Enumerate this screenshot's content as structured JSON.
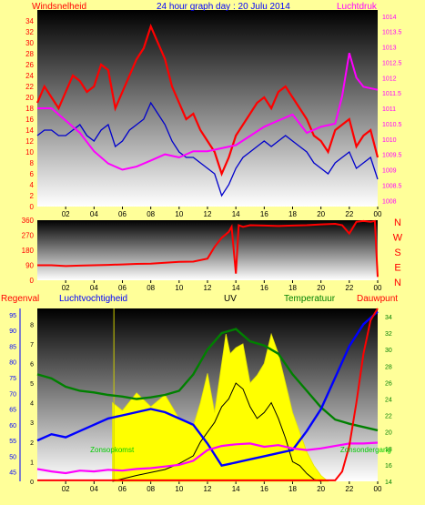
{
  "colors": {
    "background": "#ffff99",
    "wind": "#ff0000",
    "gust": "#0000cc",
    "pressure": "#ff00ff",
    "direction": "#ff0000",
    "temperature": "#008000",
    "humidity": "#0000ff",
    "dewpoint": "#ff0000",
    "rain": "#ff0000",
    "uv": "#ffff00",
    "solar": "#000000",
    "sunrise_label": "#00cc00",
    "sunset_label": "#00cc00"
  },
  "top_panel": {
    "left_title": "Windsnelheid",
    "center_title": "24 hour graph day : 20 Julu 2014",
    "right_title": "Luchtdruk"
  },
  "direction_panel": {
    "compass_labels": [
      "N",
      "W",
      "S",
      "E",
      "N"
    ]
  },
  "bottom_panel": {
    "rain_title": "Regenval",
    "humidity_title": "Luchtvochtigheid",
    "uv_title": "UV",
    "temperature_title": "Temperatuur",
    "dewpoint_title": "Dauwpunt",
    "sunrise_label": "Zonsopkomst",
    "sunset_label": "Zonsondergang"
  },
  "x_ticks": [
    "02",
    "04",
    "06",
    "08",
    "10",
    "12",
    "14",
    "16",
    "18",
    "20",
    "22",
    "00"
  ],
  "chart_data": [
    {
      "type": "line",
      "name": "wind-pressure",
      "x_hours_ticks": [
        2,
        4,
        6,
        8,
        10,
        12,
        14,
        16,
        18,
        20,
        22,
        24
      ],
      "left_axis": {
        "ticks": [
          0,
          2,
          4,
          6,
          8,
          10,
          12,
          14,
          16,
          18,
          20,
          22,
          24,
          26,
          28,
          30,
          32,
          34
        ],
        "ylim": [
          0,
          36
        ]
      },
      "right_axis": {
        "ticks": [
          "1008",
          "1008.5",
          "1009",
          "1009.5",
          "1010",
          "1010.5",
          "1011",
          "1011.5",
          "1012",
          "1012.5",
          "1013",
          "1013.5",
          "1014"
        ],
        "ylim": [
          1007.8,
          1014.2
        ]
      },
      "series": [
        {
          "axis": "left",
          "x": [
            0,
            0.5,
            1,
            1.5,
            2,
            2.5,
            3,
            3.5,
            4,
            4.5,
            5,
            5.5,
            6,
            6.5,
            7,
            7.5,
            8,
            8.5,
            9,
            9.5,
            10,
            10.5,
            11,
            11.5,
            12,
            12.5,
            13,
            13.5,
            14,
            14.5,
            15,
            15.5,
            16,
            16.5,
            17,
            17.5,
            18,
            18.5,
            19,
            19.5,
            20,
            20.5,
            21,
            21.5,
            22,
            22.5,
            23,
            23.5,
            24
          ],
          "values": [
            19,
            22,
            20,
            18,
            21,
            24,
            23,
            21,
            22,
            26,
            25,
            18,
            21,
            24,
            27,
            29,
            33,
            30,
            27,
            22,
            19,
            16,
            17,
            14,
            12,
            10,
            6,
            9,
            13,
            15,
            17,
            19,
            20,
            18,
            21,
            22,
            20,
            18,
            16,
            13,
            12,
            10,
            14,
            15,
            16,
            11,
            13,
            14,
            9
          ]
        },
        {
          "axis": "left",
          "x": [
            0,
            0.5,
            1,
            1.5,
            2,
            2.5,
            3,
            3.5,
            4,
            4.5,
            5,
            5.5,
            6,
            6.5,
            7,
            7.5,
            8,
            8.5,
            9,
            9.5,
            10,
            10.5,
            11,
            11.5,
            12,
            12.5,
            13,
            13.5,
            14,
            14.5,
            15,
            15.5,
            16,
            16.5,
            17,
            17.5,
            18,
            18.5,
            19,
            19.5,
            20,
            20.5,
            21,
            21.5,
            22,
            22.5,
            23,
            23.5,
            24
          ],
          "values": [
            13,
            14,
            14,
            13,
            13,
            14,
            15,
            13,
            12,
            14,
            15,
            11,
            12,
            14,
            15,
            16,
            19,
            17,
            15,
            12,
            10,
            9,
            9,
            8,
            7,
            6,
            2,
            4,
            7,
            9,
            10,
            11,
            12,
            11,
            12,
            13,
            12,
            11,
            10,
            8,
            7,
            6,
            8,
            9,
            10,
            7,
            8,
            9,
            5
          ]
        },
        {
          "axis": "right",
          "x": [
            0,
            1,
            2,
            3,
            4,
            5,
            6,
            7,
            8,
            9,
            10,
            11,
            12,
            13,
            14,
            15,
            16,
            17,
            18,
            19,
            20,
            21,
            21.5,
            22,
            22.5,
            23,
            24
          ],
          "values": [
            1011,
            1011,
            1010.6,
            1010.2,
            1009.6,
            1009.2,
            1009.0,
            1009.1,
            1009.3,
            1009.5,
            1009.4,
            1009.6,
            1009.6,
            1009.7,
            1009.8,
            1010.1,
            1010.4,
            1010.6,
            1010.8,
            1010.2,
            1010.4,
            1010.5,
            1011.4,
            1012.8,
            1012.0,
            1011.7,
            1011.6
          ]
        }
      ]
    },
    {
      "type": "line",
      "name": "wind-direction",
      "left_axis": {
        "ticks": [
          0,
          90,
          180,
          270,
          360
        ],
        "ylim": [
          0,
          360
        ]
      },
      "series": [
        {
          "x": [
            0,
            1,
            2,
            3,
            4,
            5,
            6,
            7,
            8,
            9,
            10,
            11,
            12,
            12.5,
            13,
            13.5,
            13.7,
            14,
            14.2,
            14.5,
            15,
            16,
            17,
            18,
            19,
            20,
            21,
            21.5,
            22,
            22.5,
            23,
            23.5,
            23.8,
            24
          ],
          "values": [
            90,
            90,
            85,
            88,
            90,
            92,
            95,
            98,
            100,
            105,
            110,
            112,
            130,
            200,
            255,
            290,
            320,
            40,
            330,
            320,
            330,
            328,
            325,
            328,
            330,
            335,
            338,
            330,
            280,
            350,
            355,
            350,
            355,
            20
          ]
        }
      ]
    },
    {
      "type": "line",
      "name": "rain-humidity-uv-temperature",
      "left_axis": {
        "ticks": [
          45,
          50,
          55,
          60,
          65,
          70,
          75,
          80,
          85,
          90,
          95
        ],
        "ylim": [
          42,
          97
        ]
      },
      "uv_axis": {
        "ticks": [
          0,
          1,
          2,
          3,
          4,
          5,
          6,
          7,
          8
        ],
        "ylim": [
          0,
          8.8
        ]
      },
      "right_axis": {
        "ticks": [
          14,
          16,
          18,
          20,
          22,
          24,
          26,
          28,
          30,
          32,
          34
        ],
        "ylim": [
          14,
          35
        ]
      },
      "series": [
        {
          "axis": "left",
          "x": [
            0,
            1,
            2,
            3,
            4,
            5,
            6,
            7,
            8,
            9,
            10,
            11,
            12,
            13,
            14,
            15,
            16,
            17,
            18,
            19,
            20,
            21,
            22,
            23,
            24
          ],
          "values": [
            55,
            57,
            56,
            58,
            60,
            62,
            63,
            64,
            65,
            64,
            62,
            60,
            54,
            47,
            48,
            49,
            50,
            51,
            52,
            58,
            65,
            75,
            85,
            92,
            96
          ]
        },
        {
          "axis": "right",
          "x": [
            0,
            1,
            2,
            3,
            4,
            5,
            6,
            7,
            8,
            9,
            10,
            11,
            12,
            13,
            14,
            15,
            16,
            17,
            18,
            19,
            20,
            21,
            22,
            23,
            24
          ],
          "values": [
            27,
            26.5,
            25.5,
            25,
            24.8,
            24.5,
            24.3,
            24,
            24.2,
            24.5,
            25,
            27,
            30,
            32,
            32.5,
            31,
            30.5,
            29.5,
            27,
            25,
            23,
            21.5,
            21,
            20.6,
            20.2
          ]
        },
        {
          "axis": "right",
          "x": [
            0,
            1,
            2,
            3,
            4,
            5,
            6,
            7,
            8,
            9,
            10,
            11,
            12,
            13,
            14,
            15,
            16,
            17,
            18,
            19,
            20,
            21,
            22,
            23,
            24
          ],
          "values": [
            15.5,
            15.2,
            15,
            15.3,
            15.2,
            15.4,
            15.3,
            15.5,
            15.6,
            15.8,
            16,
            16.5,
            17.8,
            18.3,
            18.5,
            18.6,
            18.2,
            18.4,
            18,
            17.8,
            18,
            18.3,
            18.6,
            18.6,
            18.7
          ]
        },
        {
          "axis": "uv",
          "x": [
            5.3,
            6,
            7,
            8,
            9,
            10,
            11,
            11.5,
            12,
            12.5,
            13,
            13.3,
            13.6,
            14,
            14.5,
            15,
            15.5,
            16,
            16.5,
            17,
            17.5,
            18,
            18.5,
            19,
            19.5,
            20,
            20.5
          ],
          "values": [
            4,
            3.6,
            4.5,
            3.8,
            4.4,
            3.2,
            2.8,
            4,
            5.5,
            3.5,
            6,
            7.5,
            6.5,
            6.8,
            7,
            5,
            5.4,
            6,
            7.5,
            6.5,
            5,
            3.5,
            2.5,
            1.5,
            0.8,
            0.3,
            0
          ]
        },
        {
          "axis": "uv",
          "x": [
            5.3,
            7,
            9,
            10,
            11,
            11.5,
            12,
            12.5,
            13,
            13.5,
            14,
            14.5,
            15,
            15.5,
            16,
            16.5,
            17,
            17.5,
            18,
            18.5,
            19,
            19.5,
            20
          ],
          "values": [
            0,
            0.3,
            0.6,
            0.9,
            1.3,
            2,
            2.5,
            3,
            3.8,
            4.2,
            5,
            4.7,
            3.8,
            3.2,
            3.5,
            4,
            3.2,
            2.2,
            1,
            0.8,
            0.4,
            0.1,
            0
          ]
        }
      ],
      "sunrise_hour": 5.4,
      "sunset_hour": 22.0
    }
  ]
}
